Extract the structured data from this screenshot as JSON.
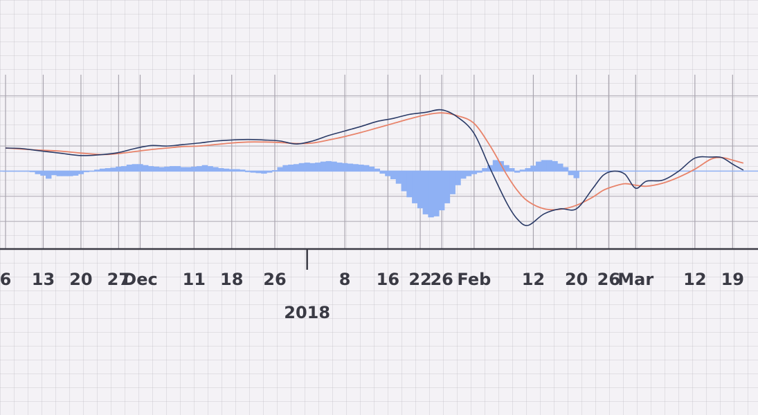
{
  "chart_data": {
    "type": "line",
    "title": "",
    "xlabel": "",
    "ylabel": "",
    "grid": true,
    "x_ticks": [
      {
        "label": "6",
        "day": 0
      },
      {
        "label": "13",
        "day": 7
      },
      {
        "label": "20",
        "day": 14
      },
      {
        "label": "27",
        "day": 21
      },
      {
        "label": "Dec",
        "day": 25
      },
      {
        "label": "11",
        "day": 35
      },
      {
        "label": "18",
        "day": 42
      },
      {
        "label": "26",
        "day": 50
      },
      {
        "label": "8",
        "day": 63
      },
      {
        "label": "16",
        "day": 71
      },
      {
        "label": "22",
        "day": 77
      },
      {
        "label": "26",
        "day": 81
      },
      {
        "label": "Feb",
        "day": 87
      },
      {
        "label": "12",
        "day": 98
      },
      {
        "label": "20",
        "day": 106
      },
      {
        "label": "26",
        "day": 112
      },
      {
        "label": "Mar",
        "day": 117
      },
      {
        "label": "12",
        "day": 128
      },
      {
        "label": "19",
        "day": 135
      }
    ],
    "year_label": {
      "label": "2018",
      "day": 56
    },
    "series": [
      {
        "color": "#2a3a66",
        "points": [
          [
            0,
            0.46
          ],
          [
            3,
            0.45
          ],
          [
            6,
            0.41
          ],
          [
            10,
            0.36
          ],
          [
            14,
            0.31
          ],
          [
            18,
            0.33
          ],
          [
            21,
            0.37
          ],
          [
            24,
            0.45
          ],
          [
            27,
            0.51
          ],
          [
            30,
            0.5
          ],
          [
            33,
            0.53
          ],
          [
            36,
            0.56
          ],
          [
            39,
            0.6
          ],
          [
            42,
            0.62
          ],
          [
            45,
            0.63
          ],
          [
            48,
            0.62
          ],
          [
            51,
            0.6
          ],
          [
            54,
            0.54
          ],
          [
            57,
            0.6
          ],
          [
            60,
            0.71
          ],
          [
            63,
            0.8
          ],
          [
            66,
            0.89
          ],
          [
            69,
            0.99
          ],
          [
            72,
            1.05
          ],
          [
            75,
            1.13
          ],
          [
            78,
            1.17
          ],
          [
            81,
            1.22
          ],
          [
            84,
            1.07
          ],
          [
            87,
            0.75
          ],
          [
            90,
            0.05
          ],
          [
            93,
            -0.62
          ],
          [
            95,
            -0.95
          ],
          [
            97,
            -1.08
          ],
          [
            100,
            -0.85
          ],
          [
            103,
            -0.75
          ],
          [
            106,
            -0.75
          ],
          [
            109,
            -0.35
          ],
          [
            111,
            -0.08
          ],
          [
            113,
            0.0
          ],
          [
            115,
            -0.06
          ],
          [
            117,
            -0.34
          ],
          [
            119,
            -0.2
          ],
          [
            122,
            -0.18
          ],
          [
            125,
            0.0
          ],
          [
            128,
            0.26
          ],
          [
            131,
            0.28
          ],
          [
            133,
            0.27
          ],
          [
            135,
            0.14
          ],
          [
            137,
            0.02
          ]
        ]
      },
      {
        "color": "#e8836a",
        "points": [
          [
            0,
            0.46
          ],
          [
            3,
            0.44
          ],
          [
            6,
            0.42
          ],
          [
            10,
            0.4
          ],
          [
            14,
            0.36
          ],
          [
            18,
            0.33
          ],
          [
            21,
            0.35
          ],
          [
            24,
            0.39
          ],
          [
            27,
            0.43
          ],
          [
            30,
            0.46
          ],
          [
            33,
            0.49
          ],
          [
            36,
            0.5
          ],
          [
            39,
            0.53
          ],
          [
            42,
            0.56
          ],
          [
            45,
            0.58
          ],
          [
            48,
            0.58
          ],
          [
            51,
            0.57
          ],
          [
            54,
            0.55
          ],
          [
            57,
            0.56
          ],
          [
            60,
            0.62
          ],
          [
            63,
            0.69
          ],
          [
            66,
            0.77
          ],
          [
            69,
            0.86
          ],
          [
            72,
            0.95
          ],
          [
            75,
            1.04
          ],
          [
            78,
            1.12
          ],
          [
            81,
            1.16
          ],
          [
            84,
            1.1
          ],
          [
            87,
            0.95
          ],
          [
            90,
            0.5
          ],
          [
            93,
            -0.06
          ],
          [
            95,
            -0.38
          ],
          [
            97,
            -0.6
          ],
          [
            100,
            -0.75
          ],
          [
            103,
            -0.76
          ],
          [
            106,
            -0.68
          ],
          [
            109,
            -0.52
          ],
          [
            111,
            -0.38
          ],
          [
            113,
            -0.3
          ],
          [
            115,
            -0.25
          ],
          [
            117,
            -0.28
          ],
          [
            119,
            -0.3
          ],
          [
            122,
            -0.24
          ],
          [
            125,
            -0.12
          ],
          [
            128,
            0.04
          ],
          [
            131,
            0.24
          ],
          [
            133,
            0.27
          ],
          [
            135,
            0.22
          ],
          [
            137,
            0.16
          ]
        ]
      }
    ],
    "histogram": [
      {
        "day": 0,
        "value": 0.0
      },
      {
        "day": 1,
        "value": 0.0
      },
      {
        "day": 2,
        "value": 0.0
      },
      {
        "day": 3,
        "value": 0.0
      },
      {
        "day": 4,
        "value": 0.0
      },
      {
        "day": 5,
        "value": -0.02
      },
      {
        "day": 6,
        "value": -0.06
      },
      {
        "day": 7,
        "value": -0.09
      },
      {
        "day": 8,
        "value": -0.15
      },
      {
        "day": 9,
        "value": -0.08
      },
      {
        "day": 10,
        "value": -0.1
      },
      {
        "day": 11,
        "value": -0.1
      },
      {
        "day": 12,
        "value": -0.1
      },
      {
        "day": 13,
        "value": -0.09
      },
      {
        "day": 14,
        "value": -0.06
      },
      {
        "day": 15,
        "value": -0.02
      },
      {
        "day": 16,
        "value": 0.0
      },
      {
        "day": 17,
        "value": 0.03
      },
      {
        "day": 18,
        "value": 0.05
      },
      {
        "day": 19,
        "value": 0.06
      },
      {
        "day": 20,
        "value": 0.07
      },
      {
        "day": 21,
        "value": 0.09
      },
      {
        "day": 22,
        "value": 0.1
      },
      {
        "day": 23,
        "value": 0.13
      },
      {
        "day": 24,
        "value": 0.14
      },
      {
        "day": 25,
        "value": 0.14
      },
      {
        "day": 26,
        "value": 0.12
      },
      {
        "day": 27,
        "value": 0.1
      },
      {
        "day": 28,
        "value": 0.09
      },
      {
        "day": 29,
        "value": 0.08
      },
      {
        "day": 30,
        "value": 0.09
      },
      {
        "day": 31,
        "value": 0.1
      },
      {
        "day": 32,
        "value": 0.1
      },
      {
        "day": 33,
        "value": 0.08
      },
      {
        "day": 34,
        "value": 0.08
      },
      {
        "day": 35,
        "value": 0.09
      },
      {
        "day": 36,
        "value": 0.1
      },
      {
        "day": 37,
        "value": 0.12
      },
      {
        "day": 38,
        "value": 0.1
      },
      {
        "day": 39,
        "value": 0.08
      },
      {
        "day": 40,
        "value": 0.06
      },
      {
        "day": 41,
        "value": 0.05
      },
      {
        "day": 42,
        "value": 0.04
      },
      {
        "day": 43,
        "value": 0.04
      },
      {
        "day": 44,
        "value": 0.03
      },
      {
        "day": 45,
        "value": -0.02
      },
      {
        "day": 46,
        "value": -0.03
      },
      {
        "day": 47,
        "value": -0.04
      },
      {
        "day": 48,
        "value": -0.05
      },
      {
        "day": 49,
        "value": -0.03
      },
      {
        "day": 50,
        "value": 0.02
      },
      {
        "day": 51,
        "value": 0.08
      },
      {
        "day": 52,
        "value": 0.12
      },
      {
        "day": 53,
        "value": 0.13
      },
      {
        "day": 54,
        "value": 0.14
      },
      {
        "day": 55,
        "value": 0.16
      },
      {
        "day": 56,
        "value": 0.17
      },
      {
        "day": 57,
        "value": 0.16
      },
      {
        "day": 58,
        "value": 0.17
      },
      {
        "day": 59,
        "value": 0.19
      },
      {
        "day": 60,
        "value": 0.2
      },
      {
        "day": 61,
        "value": 0.19
      },
      {
        "day": 62,
        "value": 0.17
      },
      {
        "day": 63,
        "value": 0.16
      },
      {
        "day": 64,
        "value": 0.15
      },
      {
        "day": 65,
        "value": 0.14
      },
      {
        "day": 66,
        "value": 0.13
      },
      {
        "day": 67,
        "value": 0.12
      },
      {
        "day": 68,
        "value": 0.09
      },
      {
        "day": 69,
        "value": 0.05
      },
      {
        "day": 70,
        "value": -0.05
      },
      {
        "day": 71,
        "value": -0.1
      },
      {
        "day": 72,
        "value": -0.16
      },
      {
        "day": 73,
        "value": -0.25
      },
      {
        "day": 74,
        "value": -0.4
      },
      {
        "day": 75,
        "value": -0.52
      },
      {
        "day": 76,
        "value": -0.64
      },
      {
        "day": 77,
        "value": -0.74
      },
      {
        "day": 78,
        "value": -0.86
      },
      {
        "day": 79,
        "value": -0.92
      },
      {
        "day": 80,
        "value": -0.9
      },
      {
        "day": 81,
        "value": -0.78
      },
      {
        "day": 82,
        "value": -0.64
      },
      {
        "day": 83,
        "value": -0.46
      },
      {
        "day": 84,
        "value": -0.28
      },
      {
        "day": 85,
        "value": -0.15
      },
      {
        "day": 86,
        "value": -0.1
      },
      {
        "day": 87,
        "value": -0.06
      },
      {
        "day": 88,
        "value": -0.03
      },
      {
        "day": 89,
        "value": 0.06
      },
      {
        "day": 90,
        "value": 0.12
      },
      {
        "day": 91,
        "value": 0.22
      },
      {
        "day": 92,
        "value": 0.2
      },
      {
        "day": 93,
        "value": 0.12
      },
      {
        "day": 94,
        "value": 0.06
      },
      {
        "day": 95,
        "value": -0.03
      },
      {
        "day": 96,
        "value": 0.03
      },
      {
        "day": 97,
        "value": 0.06
      },
      {
        "day": 98,
        "value": 0.11
      },
      {
        "day": 99,
        "value": 0.19
      },
      {
        "day": 100,
        "value": 0.22
      },
      {
        "day": 101,
        "value": 0.22
      },
      {
        "day": 102,
        "value": 0.2
      },
      {
        "day": 103,
        "value": 0.15
      },
      {
        "day": 104,
        "value": 0.08
      },
      {
        "day": 105,
        "value": -0.08
      },
      {
        "day": 106,
        "value": -0.14
      }
    ],
    "ylim": [
      -1.55,
      1.92
    ]
  }
}
